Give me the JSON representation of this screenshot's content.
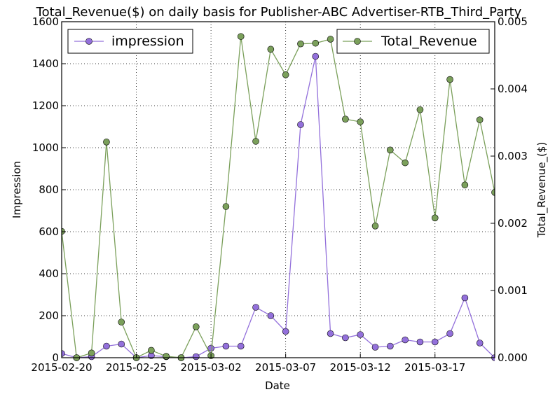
{
  "chart_data": {
    "type": "line",
    "title": "Total_Revenue($) on daily basis for Publisher-ABC Advertiser-RTB_Third_Party",
    "xlabel": "Date",
    "ylabel_left": "Impression",
    "ylabel_right": "Total_Revenue_($)",
    "x_start": "2015-02-20",
    "x_tick_labels": [
      "2015-02-20",
      "2015-02-25",
      "2015-03-02",
      "2015-03-07",
      "2015-03-12",
      "2015-03-17"
    ],
    "x_tick_offsets": [
      0,
      5,
      10,
      15,
      20,
      25
    ],
    "xlim": [
      0,
      29
    ],
    "ylim_left": [
      0,
      1600
    ],
    "yticks_left": [
      "0",
      "200",
      "400",
      "600",
      "800",
      "1000",
      "1200",
      "1400",
      "1600"
    ],
    "ylim_right": [
      0,
      0.005
    ],
    "yticks_right": [
      "0.000",
      "0.001",
      "0.002",
      "0.003",
      "0.004",
      "0.005"
    ],
    "grid": true,
    "series": [
      {
        "name": "impression",
        "axis": "left",
        "color": "#9370DB",
        "values": [
          20,
          0,
          5,
          55,
          65,
          0,
          10,
          5,
          0,
          5,
          45,
          55,
          55,
          240,
          200,
          125,
          1110,
          1435,
          115,
          95,
          110,
          50,
          55,
          85,
          75,
          75,
          115,
          285,
          70,
          0
        ]
      },
      {
        "name": "Total_Revenue",
        "axis": "right",
        "color": "#7BA05B",
        "values": [
          0.00188,
          0.0,
          7e-05,
          0.00321,
          0.00053,
          0.0,
          0.00011,
          2e-05,
          0.0,
          0.00046,
          3e-05,
          0.00225,
          0.00478,
          0.00322,
          0.00459,
          0.00421,
          0.00467,
          0.00468,
          0.00474,
          0.00355,
          0.00351,
          0.00196,
          0.00309,
          0.0029,
          0.00369,
          0.00208,
          0.00414,
          0.00257,
          0.00354,
          0.00246
        ]
      }
    ],
    "legend_left": {
      "position": "top-left",
      "label": "impression"
    },
    "legend_right": {
      "position": "top-right",
      "label": "Total_Revenue"
    }
  }
}
